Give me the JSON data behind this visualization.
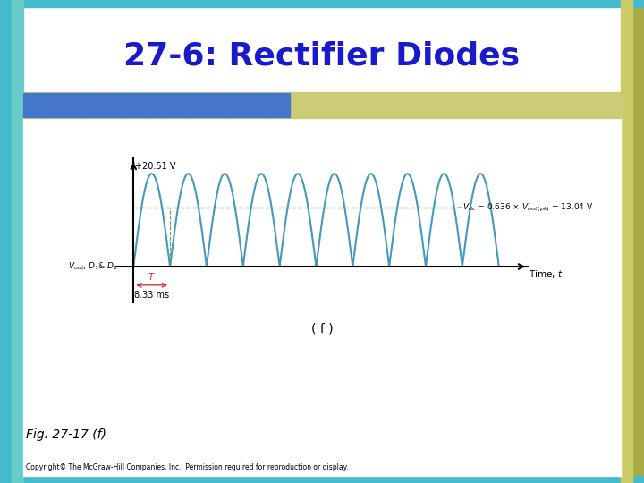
{
  "title": "27-6: Rectifier Diodes",
  "title_color": "#1a1acc",
  "title_fontsize": 26,
  "bg_color": "#ffffff",
  "header_bar_blue": "#4477cc",
  "header_bar_olive": "#cccc88",
  "teal_border": "#44bbbb",
  "olive_side": "#aaaa55",
  "peak_voltage": 20.51,
  "vdc": 13.04,
  "vdc_ratio": 0.636,
  "period_ms": 8.33,
  "num_cycles": 10,
  "wave_color": "#4499bb",
  "wave_linewidth": 1.5,
  "dashed_line_color": "#55aa55",
  "dashed_linewidth": 1.0,
  "axis_color": "#000000",
  "peak_label": "+20.51 V",
  "period_label": "8.33 ms",
  "fig_label": "( f )",
  "bottom_left_label": "Fig. 27-17 (f)",
  "copyright_text": "Copyright© The McGraw-Hill Companies, Inc.  Permission required for reproduction or display."
}
